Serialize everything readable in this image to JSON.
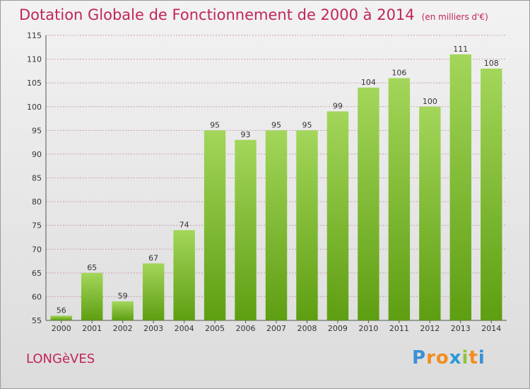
{
  "chart_data": {
    "type": "bar",
    "title": "Dotation Globale de Fonctionnement de 2000 à 2014",
    "subtitle": "(en milliers d'€)",
    "categories": [
      "2000",
      "2001",
      "2002",
      "2003",
      "2004",
      "2005",
      "2006",
      "2007",
      "2008",
      "2009",
      "2010",
      "2011",
      "2012",
      "2013",
      "2014"
    ],
    "values": [
      56,
      65,
      59,
      67,
      74,
      95,
      93,
      95,
      95,
      99,
      104,
      106,
      100,
      111,
      108
    ],
    "ylim": [
      55,
      115
    ],
    "yticks": [
      55,
      60,
      65,
      70,
      75,
      80,
      85,
      90,
      95,
      100,
      105,
      110,
      115
    ],
    "xlabel": "",
    "ylabel": "",
    "grid": true,
    "colors": {
      "bar_top": "#a3d65a",
      "bar_bottom": "#5e9e12",
      "grid": "#c8a0b4",
      "title": "#c0255a"
    }
  },
  "commune": "LONGèVES",
  "logo": {
    "letters": [
      "P",
      "r",
      "o",
      "x",
      "i",
      "t",
      "i"
    ],
    "colors": [
      "#3a8fd6",
      "#f28c1e",
      "#f28c1e",
      "#2a9ad6",
      "#8cc63f",
      "#f28c1e",
      "#3a8fd6"
    ]
  }
}
